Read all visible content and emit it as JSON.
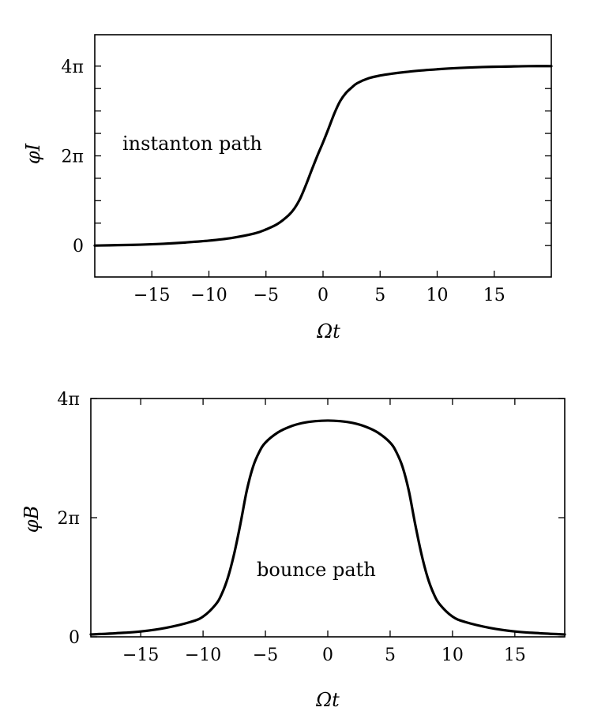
{
  "chart_data": [
    {
      "type": "line",
      "ylabel": "φI",
      "xlabel": "Ωt",
      "annotation": "instanton path",
      "xlim": [
        -20,
        20
      ],
      "ylim": [
        -0.7,
        4.7
      ],
      "xticks": [
        -15,
        -10,
        -5,
        0,
        5,
        10,
        15
      ],
      "xtick_labels": [
        "−15",
        "−10",
        "−5",
        "0",
        "5",
        "10",
        "15"
      ],
      "yticks_labeled": [
        0,
        2,
        4
      ],
      "ytick_labels": [
        "0",
        "2π",
        "4π"
      ],
      "yticks_minor": [
        0.5,
        1,
        1.5,
        2.5,
        3,
        3.5
      ],
      "y_unit": "π",
      "series": [
        {
          "x": [
            -20,
            -18,
            -16,
            -14,
            -12,
            -10,
            -8,
            -6,
            -5,
            -4,
            -3,
            -2.5,
            -2,
            -1.5,
            -1,
            -0.5,
            0,
            0.5,
            1,
            1.5,
            2,
            2.5,
            3,
            4,
            5,
            6,
            8,
            10,
            12,
            14,
            16,
            18,
            20
          ],
          "y": [
            0.0,
            0.01,
            0.02,
            0.04,
            0.07,
            0.11,
            0.17,
            0.27,
            0.36,
            0.48,
            0.68,
            0.83,
            1.05,
            1.35,
            1.68,
            2.0,
            2.3,
            2.62,
            2.95,
            3.22,
            3.4,
            3.52,
            3.62,
            3.73,
            3.79,
            3.83,
            3.89,
            3.93,
            3.96,
            3.98,
            3.99,
            4.0,
            4.0
          ]
        }
      ]
    },
    {
      "type": "line",
      "ylabel": "φB",
      "xlabel": "Ωt",
      "annotation": "bounce path",
      "xlim": [
        -19,
        19
      ],
      "ylim": [
        0,
        4
      ],
      "xticks": [
        -15,
        -10,
        -5,
        0,
        5,
        10,
        15
      ],
      "xtick_labels": [
        "−15",
        "−10",
        "−5",
        "0",
        "5",
        "10",
        "15"
      ],
      "yticks_labeled": [
        0,
        2,
        4
      ],
      "ytick_labels": [
        "0",
        "2π",
        "4π"
      ],
      "yticks_minor": [],
      "y_unit": "π",
      "series": [
        {
          "x": [
            -19,
            -17,
            -15,
            -13,
            -11,
            -10,
            -9,
            -8.5,
            -8,
            -7.5,
            -7,
            -6.5,
            -6,
            -5.5,
            -5,
            -4,
            -3,
            -2,
            -1,
            0,
            1,
            2,
            3,
            4,
            5,
            5.5,
            6,
            6.5,
            7,
            7.5,
            8,
            8.5,
            9,
            10,
            11,
            13,
            15,
            17,
            19
          ],
          "y": [
            0.04,
            0.06,
            0.09,
            0.15,
            0.25,
            0.34,
            0.54,
            0.72,
            1.0,
            1.4,
            1.9,
            2.45,
            2.85,
            3.1,
            3.26,
            3.43,
            3.53,
            3.59,
            3.62,
            3.63,
            3.62,
            3.59,
            3.53,
            3.43,
            3.26,
            3.1,
            2.85,
            2.45,
            1.9,
            1.4,
            1.0,
            0.72,
            0.54,
            0.34,
            0.25,
            0.15,
            0.09,
            0.06,
            0.04
          ]
        }
      ]
    }
  ]
}
